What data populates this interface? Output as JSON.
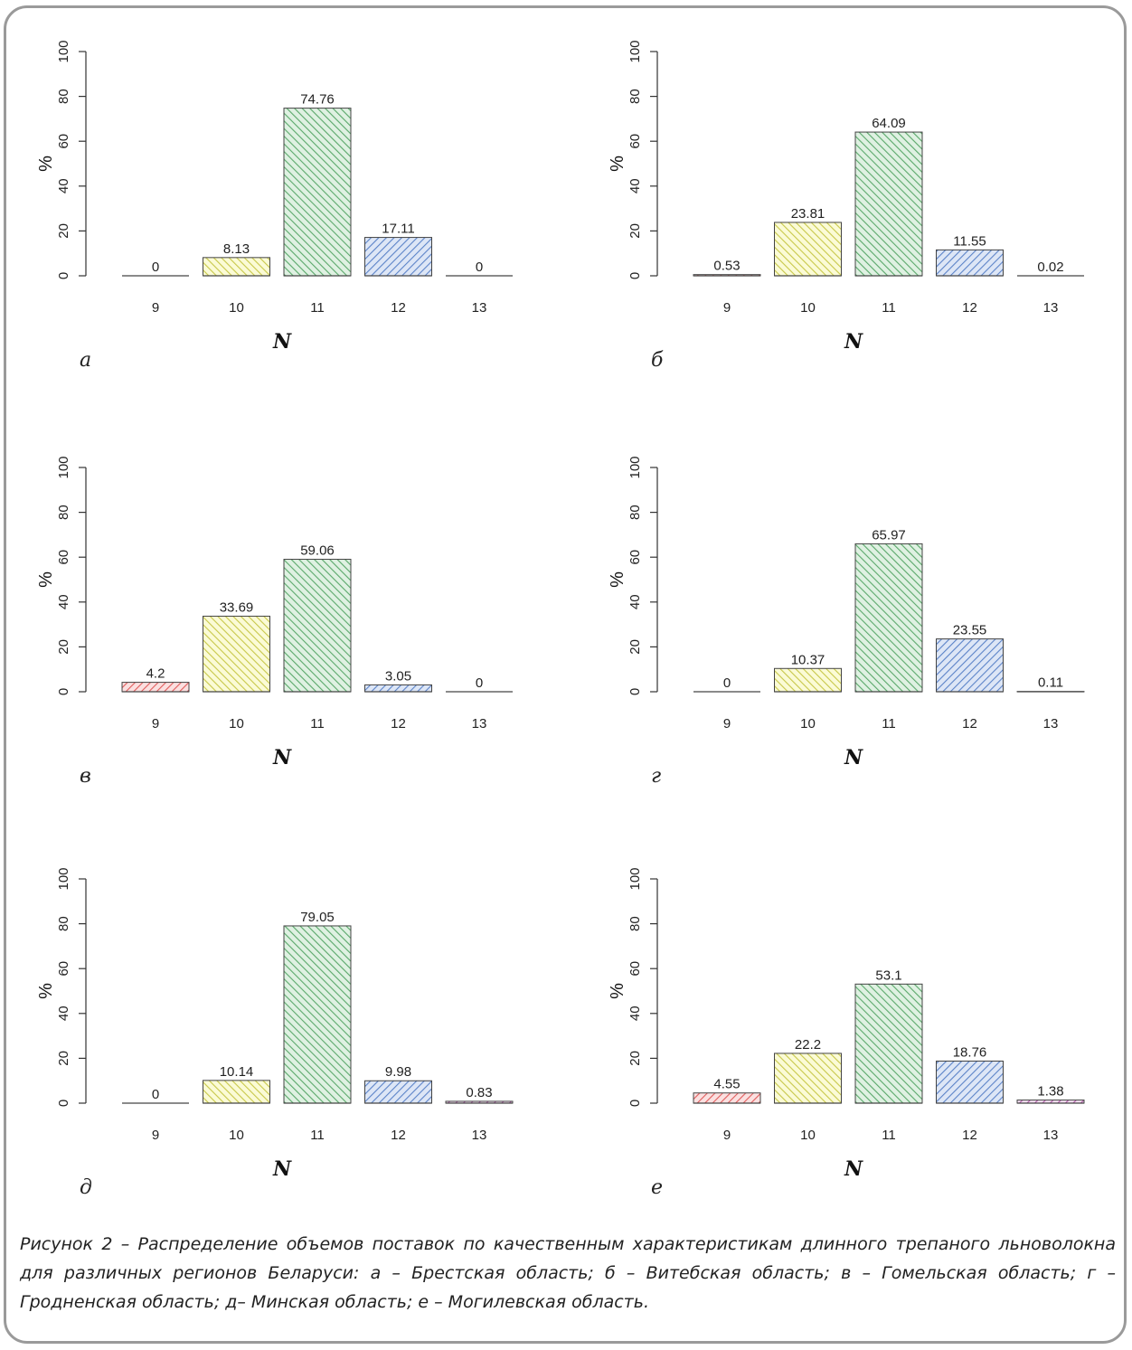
{
  "colors": {
    "9": "#e05a5a",
    "10": "#c8c84a",
    "11": "#5aa86a",
    "12": "#5a82c8",
    "13": "#b05aa8",
    "fill_9": "#fbe0e0",
    "fill_10": "#fbfbd6",
    "fill_11": "#dff1e2",
    "fill_12": "#dde6f6",
    "fill_13": "#f3dff1"
  },
  "chart_data": [
    {
      "type": "bar",
      "panel_label": "а",
      "categories": [
        "9",
        "10",
        "11",
        "12",
        "13"
      ],
      "values": [
        0,
        8.13,
        74.76,
        17.11,
        0
      ],
      "value_labels": [
        "0",
        "8.13",
        "74.76",
        "17.11",
        "0"
      ],
      "xlabel": "N",
      "ylabel": "%",
      "ylim": [
        0,
        100
      ],
      "yticks": [
        "0",
        "20",
        "40",
        "60",
        "80",
        "100"
      ]
    },
    {
      "type": "bar",
      "panel_label": "б",
      "categories": [
        "9",
        "10",
        "11",
        "12",
        "13"
      ],
      "values": [
        0.53,
        23.81,
        64.09,
        11.55,
        0.02
      ],
      "value_labels": [
        "0.53",
        "23.81",
        "64.09",
        "11.55",
        "0.02"
      ],
      "xlabel": "N",
      "ylabel": "%",
      "ylim": [
        0,
        100
      ],
      "yticks": [
        "0",
        "20",
        "40",
        "60",
        "80",
        "100"
      ]
    },
    {
      "type": "bar",
      "panel_label": "в",
      "categories": [
        "9",
        "10",
        "11",
        "12",
        "13"
      ],
      "values": [
        4.2,
        33.69,
        59.06,
        3.05,
        0
      ],
      "value_labels": [
        "4.2",
        "33.69",
        "59.06",
        "3.05",
        "0"
      ],
      "xlabel": "N",
      "ylabel": "%",
      "ylim": [
        0,
        100
      ],
      "yticks": [
        "0",
        "20",
        "40",
        "60",
        "80",
        "100"
      ]
    },
    {
      "type": "bar",
      "panel_label": "г",
      "categories": [
        "9",
        "10",
        "11",
        "12",
        "13"
      ],
      "values": [
        0,
        10.37,
        65.97,
        23.55,
        0.11
      ],
      "value_labels": [
        "0",
        "10.37",
        "65.97",
        "23.55",
        "0.11"
      ],
      "xlabel": "N",
      "ylabel": "%",
      "ylim": [
        0,
        100
      ],
      "yticks": [
        "0",
        "20",
        "40",
        "60",
        "80",
        "100"
      ]
    },
    {
      "type": "bar",
      "panel_label": "д",
      "categories": [
        "9",
        "10",
        "11",
        "12",
        "13"
      ],
      "values": [
        0,
        10.14,
        79.05,
        9.98,
        0.83
      ],
      "value_labels": [
        "0",
        "10.14",
        "79.05",
        "9.98",
        "0.83"
      ],
      "xlabel": "N",
      "ylabel": "%",
      "ylim": [
        0,
        100
      ],
      "yticks": [
        "0",
        "20",
        "40",
        "60",
        "80",
        "100"
      ]
    },
    {
      "type": "bar",
      "panel_label": "е",
      "categories": [
        "9",
        "10",
        "11",
        "12",
        "13"
      ],
      "values": [
        4.55,
        22.2,
        53.1,
        18.76,
        1.38
      ],
      "value_labels": [
        "4.55",
        "22.2",
        "53.1",
        "18.76",
        "1.38"
      ],
      "xlabel": "N",
      "ylabel": "%",
      "ylim": [
        0,
        100
      ],
      "yticks": [
        "0",
        "20",
        "40",
        "60",
        "80",
        "100"
      ]
    }
  ],
  "caption": "Рисунок 2 – Распределение объемов поставок по качественным характеристикам длинного трепаного льноволокна для различных регионов Беларуси: а – Брестская область; б – Витебская область; в – Гомельская область; г – Гродненская область; д– Минская область; е – Могилевская область."
}
